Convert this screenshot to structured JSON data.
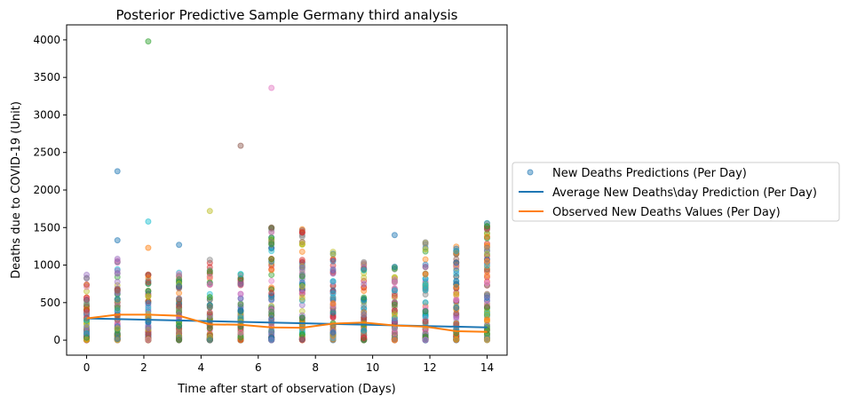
{
  "chart_data": {
    "type": "scatter",
    "title": "Posterior Predictive Sample Germany third analysis",
    "xlabel": "Time after start of observation (Days)",
    "ylabel": "Deaths due to COVID-19 (Unit)",
    "xlim": [
      -0.7,
      14.7
    ],
    "ylim": [
      -200,
      4200
    ],
    "xticks": [
      0,
      2,
      4,
      6,
      8,
      10,
      12,
      14
    ],
    "yticks": [
      0,
      500,
      1000,
      1500,
      2000,
      2500,
      3000,
      3500,
      4000
    ],
    "grid": false,
    "legend_position": "center-right, outside plot",
    "colors": {
      "scatter_palette": [
        "#1f77b4",
        "#ff7f0e",
        "#2ca02c",
        "#d62728",
        "#9467bd",
        "#8c564b",
        "#e377c2",
        "#7f7f7f",
        "#bcbd22",
        "#17becf"
      ],
      "average_line": "#1f77b4",
      "observed_line": "#ff7f0e"
    },
    "days": [
      0,
      1.077,
      2.154,
      3.231,
      4.308,
      5.385,
      6.462,
      7.538,
      8.615,
      9.692,
      10.769,
      11.846,
      12.923,
      14
    ],
    "series": [
      {
        "name": "New Deaths Predictions (Per Day)",
        "kind": "scatter",
        "note_dense_range_per_day": [
          [
            0,
            880
          ],
          [
            0,
            1100
          ],
          [
            0,
            950
          ],
          [
            0,
            920
          ],
          [
            0,
            1080
          ],
          [
            0,
            940
          ],
          [
            0,
            1620
          ],
          [
            0,
            1480
          ],
          [
            0,
            1190
          ],
          [
            0,
            1090
          ],
          [
            0,
            1000
          ],
          [
            0,
            1350
          ],
          [
            0,
            1280
          ],
          [
            0,
            1570
          ]
        ],
        "outliers": [
          {
            "x": 1.077,
            "y": 2250,
            "c": 0
          },
          {
            "x": 1.077,
            "y": 1330,
            "c": 0
          },
          {
            "x": 2.154,
            "y": 3980,
            "c": 2
          },
          {
            "x": 2.154,
            "y": 1580,
            "c": 9
          },
          {
            "x": 2.154,
            "y": 1230,
            "c": 1
          },
          {
            "x": 3.231,
            "y": 1270,
            "c": 0
          },
          {
            "x": 4.308,
            "y": 1720,
            "c": 8
          },
          {
            "x": 5.385,
            "y": 2590,
            "c": 5
          },
          {
            "x": 6.462,
            "y": 3360,
            "c": 6
          },
          {
            "x": 6.462,
            "y": 1500,
            "c": 5
          },
          {
            "x": 6.462,
            "y": 1280,
            "c": 2
          },
          {
            "x": 7.538,
            "y": 1280,
            "c": 8
          },
          {
            "x": 10.769,
            "y": 1400,
            "c": 0
          },
          {
            "x": 11.846,
            "y": 1210,
            "c": 8
          },
          {
            "x": 12.923,
            "y": 1030,
            "c": 0
          },
          {
            "x": 14,
            "y": 1560,
            "c": 9
          },
          {
            "x": 14,
            "y": 1520,
            "c": 2
          },
          {
            "x": 14,
            "y": 1230,
            "c": 7
          },
          {
            "x": 14,
            "y": 1050,
            "c": 1
          }
        ]
      },
      {
        "name": "Average New Deaths\\day Prediction (Per Day)",
        "kind": "line",
        "x": [
          0,
          14
        ],
        "y": [
          290,
          170
        ]
      },
      {
        "name": "Observed New Deaths Values (Per Day)",
        "kind": "line",
        "x": [
          0,
          1.077,
          2.154,
          3.231,
          4.308,
          5.385,
          6.462,
          7.538,
          8.615,
          9.692,
          10.769,
          11.846,
          12.923,
          14
        ],
        "y": [
          290,
          340,
          340,
          325,
          210,
          205,
          170,
          165,
          220,
          235,
          195,
          180,
          120,
          110
        ]
      }
    ]
  }
}
